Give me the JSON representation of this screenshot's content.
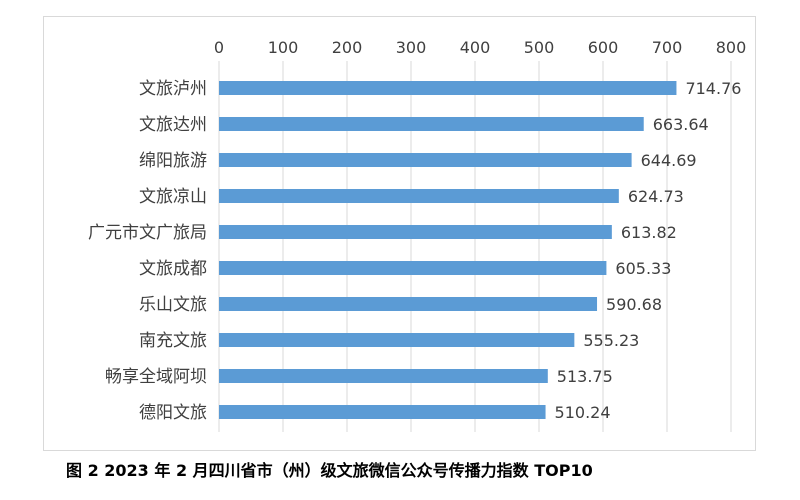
{
  "caption": "图 2   2023 年 2 月四川省市（州）级文旅微信公众号传播力指数 TOP10",
  "chart_data": {
    "type": "bar",
    "orientation": "horizontal",
    "categories": [
      "文旅泸州",
      "文旅达州",
      "绵阳旅游",
      "文旅凉山",
      "广元市文广旅局",
      "文旅成都",
      "乐山文旅",
      "南充文旅",
      "畅享全域阿坝",
      "德阳文旅"
    ],
    "values": [
      714.76,
      663.64,
      644.69,
      624.73,
      613.82,
      605.33,
      590.68,
      555.23,
      513.75,
      510.24
    ],
    "value_labels": [
      "714.76",
      "663.64",
      "644.69",
      "624.73",
      "613.82",
      "605.33",
      "590.68",
      "555.23",
      "513.75",
      "510.24"
    ],
    "xlim": [
      0,
      800
    ],
    "ticks": [
      0,
      100,
      200,
      300,
      400,
      500,
      600,
      700,
      800
    ],
    "tick_labels": [
      "0",
      "100",
      "200",
      "300",
      "400",
      "500",
      "600",
      "700",
      "800"
    ],
    "x_axis_position": "top",
    "grid": true,
    "bar_color": "#5b9bd5",
    "grid_color": "#d9d9d9",
    "text_color": "#404040"
  }
}
